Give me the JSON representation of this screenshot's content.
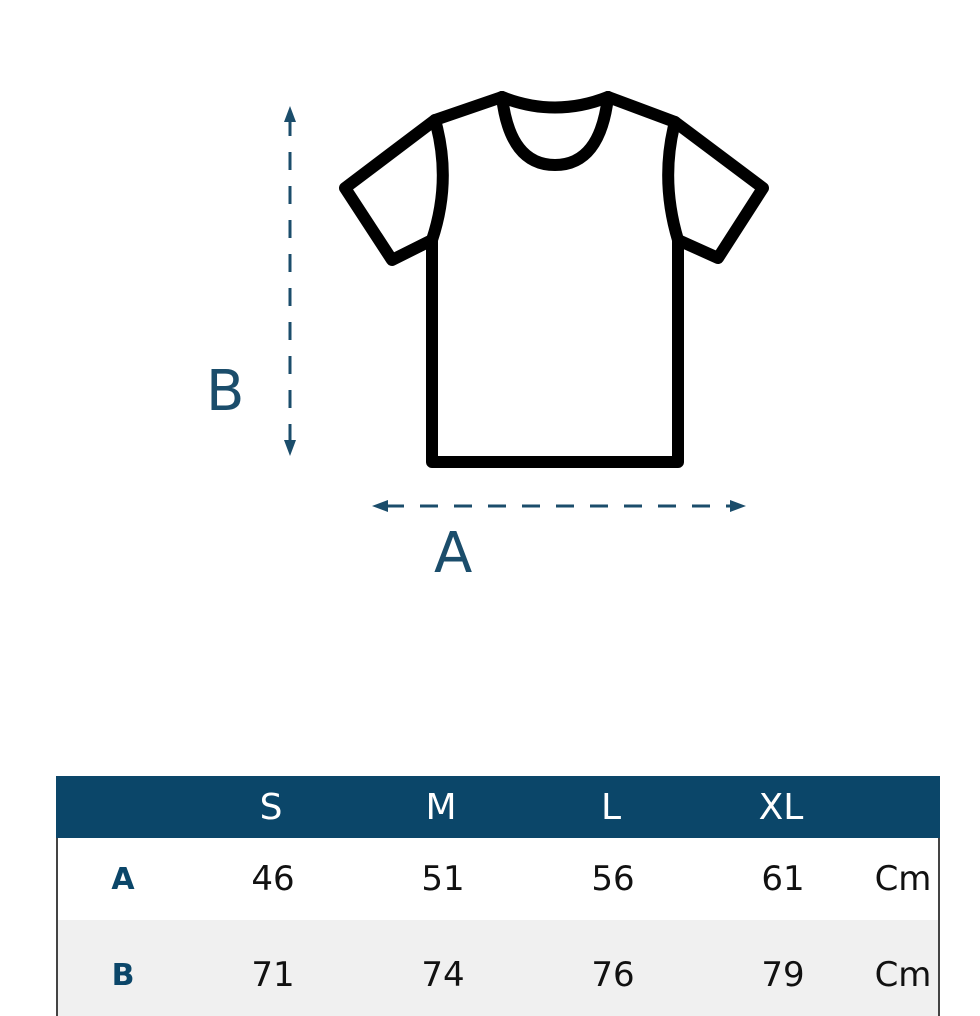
{
  "diagram": {
    "label_a": "A",
    "label_b": "B",
    "accent_color": "#1b4d6b",
    "icon": "t-shirt-icon"
  },
  "table": {
    "header_color": "#0b4669",
    "columns": [
      "",
      "S",
      "M",
      "L",
      "XL",
      ""
    ],
    "rows": [
      {
        "label": "A",
        "values": [
          "46",
          "51",
          "56",
          "61"
        ],
        "unit": "Cm"
      },
      {
        "label": "B",
        "values": [
          "71",
          "74",
          "76",
          "79"
        ],
        "unit": "Cm"
      }
    ]
  }
}
